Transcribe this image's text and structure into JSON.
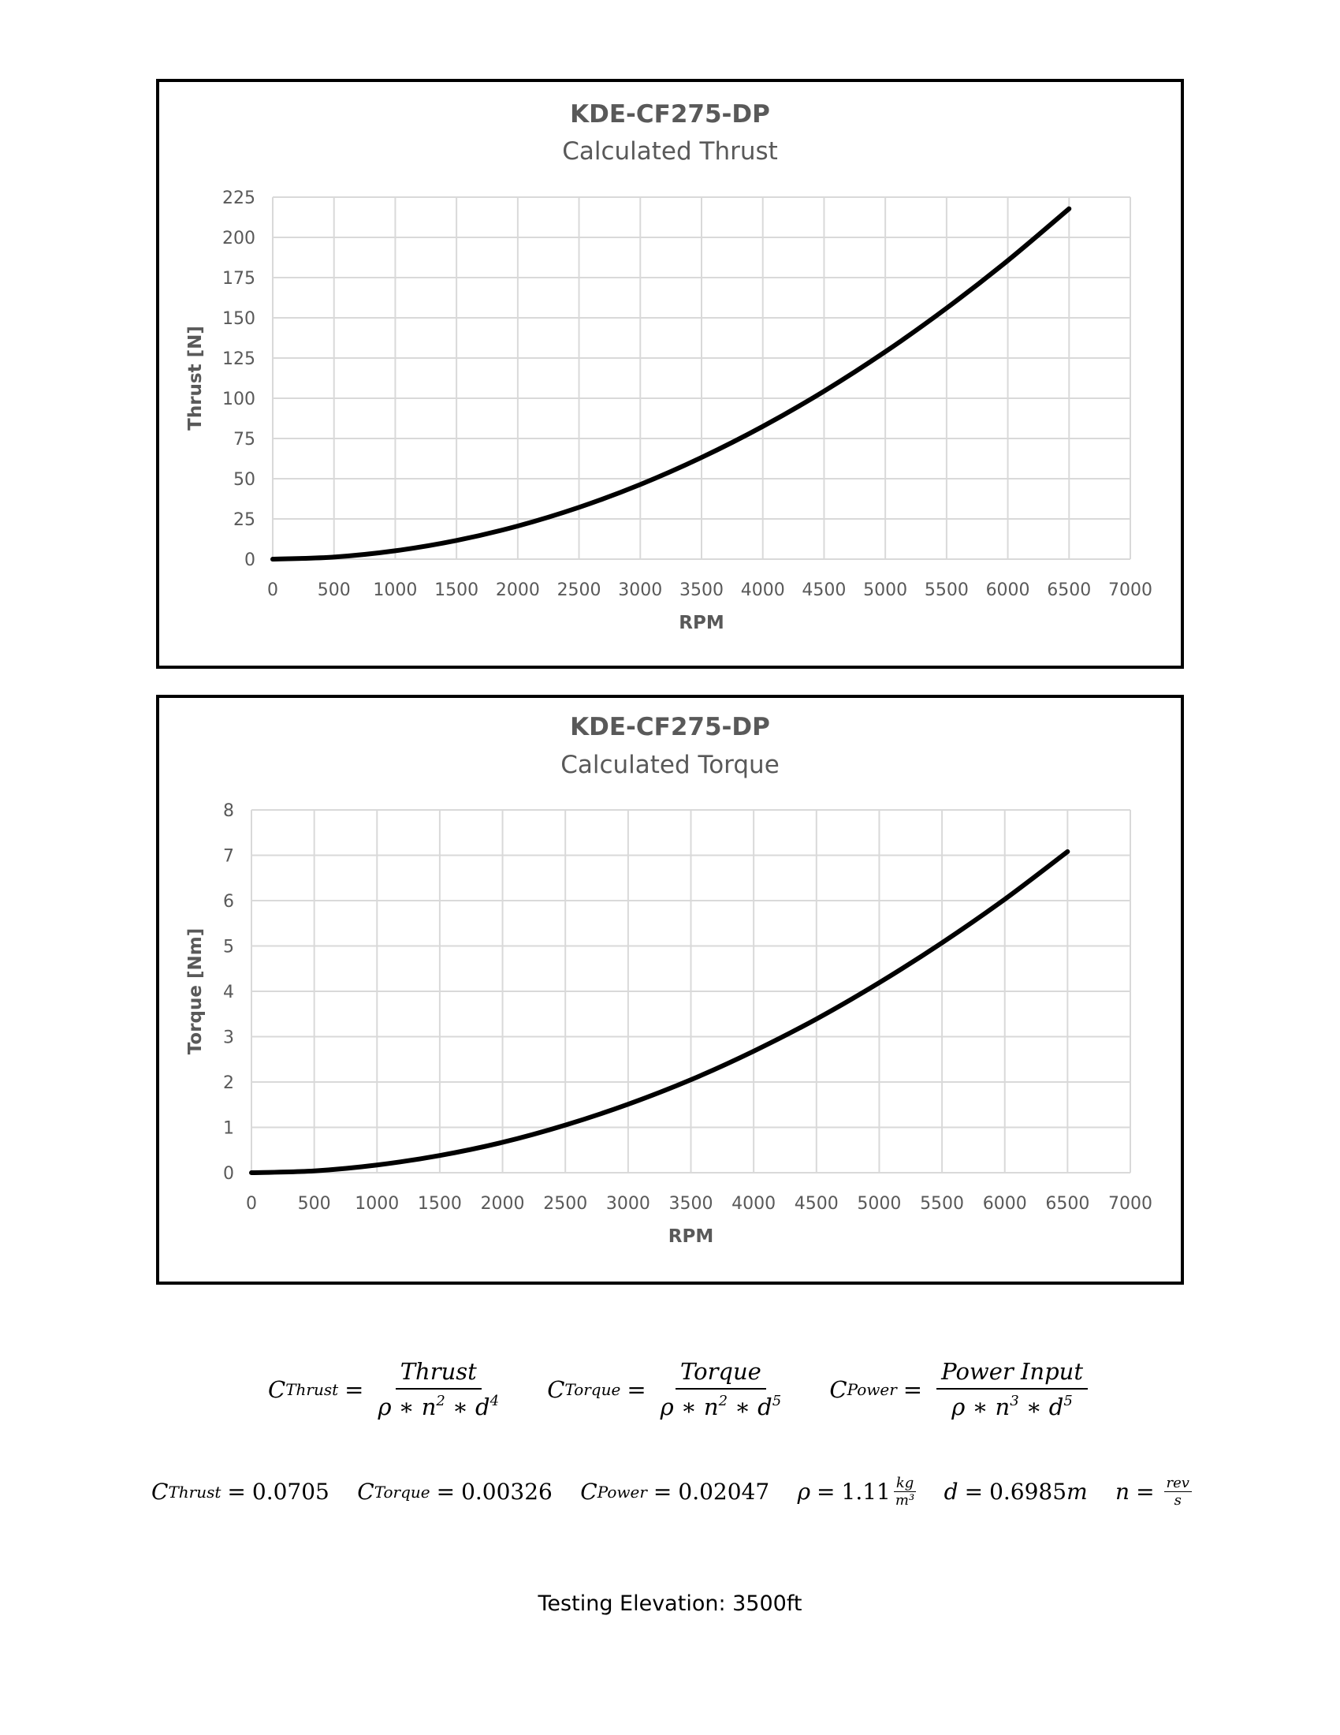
{
  "chart_data": [
    {
      "type": "line",
      "title": "KDE-CF275-DP",
      "subtitle": "Calculated Thrust",
      "xlabel": "RPM",
      "ylabel": "Thrust [N]",
      "xlim": [
        0,
        7000
      ],
      "ylim": [
        0,
        225
      ],
      "x_ticks": [
        "0",
        "500",
        "1000",
        "1500",
        "2000",
        "2500",
        "3000",
        "3500",
        "4000",
        "4500",
        "5000",
        "5500",
        "6000",
        "6500",
        "7000"
      ],
      "y_ticks": [
        "0",
        "25",
        "50",
        "75",
        "100",
        "125",
        "150",
        "175",
        "200",
        "225"
      ],
      "grid": true,
      "series": [
        {
          "x": [
            0,
            500,
            1000,
            1500,
            2000,
            2500,
            3000,
            3500,
            4000,
            4500,
            5000,
            5500,
            6000,
            6500
          ],
          "values": [
            0,
            1.3,
            5.2,
            11.6,
            20.6,
            32.2,
            46.4,
            63.2,
            82.5,
            104.4,
            128.9,
            156,
            185.6,
            217.8
          ]
        }
      ]
    },
    {
      "type": "line",
      "title": "KDE-CF275-DP",
      "subtitle": "Calculated Torque",
      "xlabel": "RPM",
      "ylabel": "Torque [Nm]",
      "xlim": [
        0,
        7000
      ],
      "ylim": [
        0,
        8
      ],
      "x_ticks": [
        "0",
        "500",
        "1000",
        "1500",
        "2000",
        "2500",
        "3000",
        "3500",
        "4000",
        "4500",
        "5000",
        "5500",
        "6000",
        "6500",
        "7000"
      ],
      "y_ticks": [
        "0",
        "1",
        "2",
        "3",
        "4",
        "5",
        "6",
        "7",
        "8"
      ],
      "grid": true,
      "series": [
        {
          "x": [
            0,
            500,
            1000,
            1500,
            2000,
            2500,
            3000,
            3500,
            4000,
            4500,
            5000,
            5500,
            6000,
            6500
          ],
          "values": [
            0,
            0.04,
            0.17,
            0.38,
            0.67,
            1.05,
            1.51,
            2.05,
            2.68,
            3.39,
            4.19,
            5.07,
            6.03,
            7.08
          ]
        }
      ]
    }
  ],
  "formulas": {
    "thrust": {
      "lhs_symbol": "C",
      "lhs_sub": "Thrust",
      "num": "Thrust",
      "den_rho": "ρ",
      "den_n": "n",
      "den_n_exp": "2",
      "den_d": "d",
      "den_d_exp": "4",
      "op": "∗"
    },
    "torque": {
      "lhs_symbol": "C",
      "lhs_sub": "Torque",
      "num": "Torque",
      "den_rho": "ρ",
      "den_n": "n",
      "den_n_exp": "2",
      "den_d": "d",
      "den_d_exp": "5",
      "op": "∗"
    },
    "power": {
      "lhs_symbol": "C",
      "lhs_sub": "Power",
      "num": "Power Input",
      "den_rho": "ρ",
      "den_n": "n",
      "den_n_exp": "3",
      "den_d": "d",
      "den_d_exp": "5",
      "op": "∗"
    }
  },
  "constants": {
    "c_thrust": {
      "sym": "C",
      "sub": "Thrust",
      "value": "0.0705"
    },
    "c_torque": {
      "sym": "C",
      "sub": "Torque",
      "value": "0.00326"
    },
    "c_power": {
      "sym": "C",
      "sub": "Power",
      "value": "0.02047"
    },
    "rho": {
      "sym": "ρ",
      "value": "1.11",
      "unit_num": "kg",
      "unit_den": "m³"
    },
    "d": {
      "sym": "d",
      "value": "0.6985",
      "unit": "m"
    },
    "n": {
      "sym": "n",
      "unit_num": "rev",
      "unit_den": "s"
    }
  },
  "footer": "Testing Elevation: 3500ft"
}
